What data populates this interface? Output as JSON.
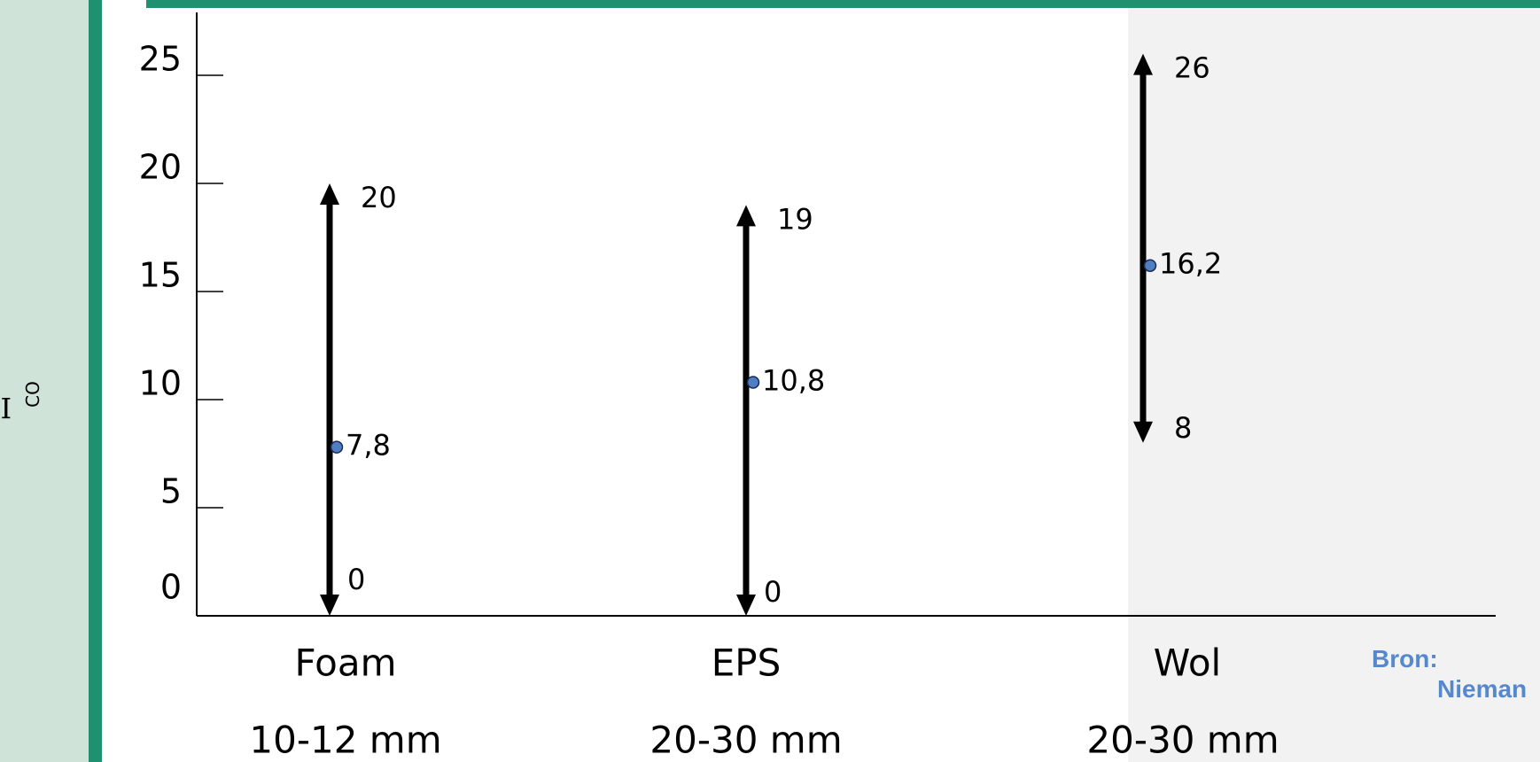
{
  "source": {
    "label": "Bron:",
    "name": "Nieman"
  },
  "colors": {
    "theme_green": "#1f9070",
    "theme_light": "#cfe3d8",
    "marker": "#4f7fc0",
    "source_text": "#5588cc"
  },
  "chart_data": {
    "type": "range",
    "ylabel_main": "I",
    "ylabel_sub": "CO",
    "ylim": [
      0,
      27
    ],
    "yticks": [
      0,
      5,
      10,
      15,
      20,
      25
    ],
    "categories": [
      {
        "name": "Foam",
        "sublabel": "10-12 mm",
        "low": 0,
        "high": 20,
        "point": 7.8,
        "low_label": "0",
        "high_label": "20",
        "point_label": "7,8"
      },
      {
        "name": "EPS",
        "sublabel": "20-30 mm",
        "low": 0,
        "high": 19,
        "point": 10.8,
        "low_label": "0",
        "high_label": "19",
        "point_label": "10,8"
      },
      {
        "name": "Wol",
        "sublabel": "20-30 mm",
        "low": 8,
        "high": 26,
        "point": 16.2,
        "low_label": "8",
        "high_label": "26",
        "point_label": "16,2"
      }
    ]
  }
}
